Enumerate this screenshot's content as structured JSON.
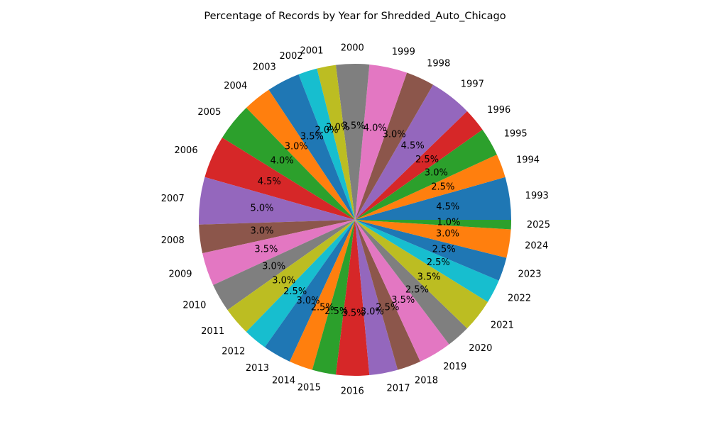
{
  "chart_data": {
    "type": "pie",
    "title": "Percentage of Records by Year for Shredded_Auto_Chicago",
    "autopct_format": "{v}%",
    "slices": [
      {
        "label": "1993",
        "value": 4.5,
        "pct_text": "4.5",
        "color": "#1f77b4"
      },
      {
        "label": "1994",
        "value": 2.5,
        "pct_text": "2.5",
        "color": "#ff7f0e"
      },
      {
        "label": "1995",
        "value": 3.0,
        "pct_text": "3.0",
        "color": "#2ca02c"
      },
      {
        "label": "1996",
        "value": 2.5,
        "pct_text": "2.5",
        "color": "#d62728"
      },
      {
        "label": "1997",
        "value": 4.5,
        "pct_text": "4.5",
        "color": "#9467bd"
      },
      {
        "label": "1998",
        "value": 3.0,
        "pct_text": "3.0",
        "color": "#8c564b"
      },
      {
        "label": "1999",
        "value": 4.0,
        "pct_text": "4.0",
        "color": "#e377c2"
      },
      {
        "label": "2000",
        "value": 3.5,
        "pct_text": "3.5",
        "color": "#7f7f7f"
      },
      {
        "label": "2001",
        "value": 2.0,
        "pct_text": "2.0",
        "color": "#bcbd22"
      },
      {
        "label": "2002",
        "value": 2.0,
        "pct_text": "2.0",
        "color": "#17becf"
      },
      {
        "label": "2003",
        "value": 3.5,
        "pct_text": "3.5",
        "color": "#1f77b4"
      },
      {
        "label": "2004",
        "value": 3.0,
        "pct_text": "3.0",
        "color": "#ff7f0e"
      },
      {
        "label": "2005",
        "value": 4.0,
        "pct_text": "4.0",
        "color": "#2ca02c"
      },
      {
        "label": "2006",
        "value": 4.5,
        "pct_text": "4.5",
        "color": "#d62728"
      },
      {
        "label": "2007",
        "value": 5.0,
        "pct_text": "5.0",
        "color": "#9467bd"
      },
      {
        "label": "2008",
        "value": 3.0,
        "pct_text": "3.0",
        "color": "#8c564b"
      },
      {
        "label": "2009",
        "value": 3.5,
        "pct_text": "3.5",
        "color": "#e377c2"
      },
      {
        "label": "2010",
        "value": 3.0,
        "pct_text": "3.0",
        "color": "#7f7f7f"
      },
      {
        "label": "2011",
        "value": 3.0,
        "pct_text": "3.0",
        "color": "#bcbd22"
      },
      {
        "label": "2012",
        "value": 2.5,
        "pct_text": "2.5",
        "color": "#17becf"
      },
      {
        "label": "2013",
        "value": 3.0,
        "pct_text": "3.0",
        "color": "#1f77b4"
      },
      {
        "label": "2014",
        "value": 2.5,
        "pct_text": "2.5",
        "color": "#ff7f0e"
      },
      {
        "label": "2015",
        "value": 2.5,
        "pct_text": "2.5",
        "color": "#2ca02c"
      },
      {
        "label": "2016",
        "value": 3.5,
        "pct_text": "3.5",
        "color": "#d62728"
      },
      {
        "label": "2017",
        "value": 3.0,
        "pct_text": "3.0",
        "color": "#9467bd"
      },
      {
        "label": "2018",
        "value": 2.5,
        "pct_text": "2.5",
        "color": "#8c564b"
      },
      {
        "label": "2019",
        "value": 3.5,
        "pct_text": "3.5",
        "color": "#e377c2"
      },
      {
        "label": "2020",
        "value": 2.5,
        "pct_text": "2.5",
        "color": "#7f7f7f"
      },
      {
        "label": "2021",
        "value": 3.5,
        "pct_text": "3.5",
        "color": "#bcbd22"
      },
      {
        "label": "2022",
        "value": 2.5,
        "pct_text": "2.5",
        "color": "#17becf"
      },
      {
        "label": "2023",
        "value": 2.5,
        "pct_text": "2.5",
        "color": "#1f77b4"
      },
      {
        "label": "2024",
        "value": 3.0,
        "pct_text": "3.0",
        "color": "#ff7f0e"
      },
      {
        "label": "2025",
        "value": 1.0,
        "pct_text": "1.0",
        "color": "#2ca02c"
      }
    ],
    "start_angle_deg": 0,
    "direction": "counterclockwise",
    "legend": "none"
  }
}
